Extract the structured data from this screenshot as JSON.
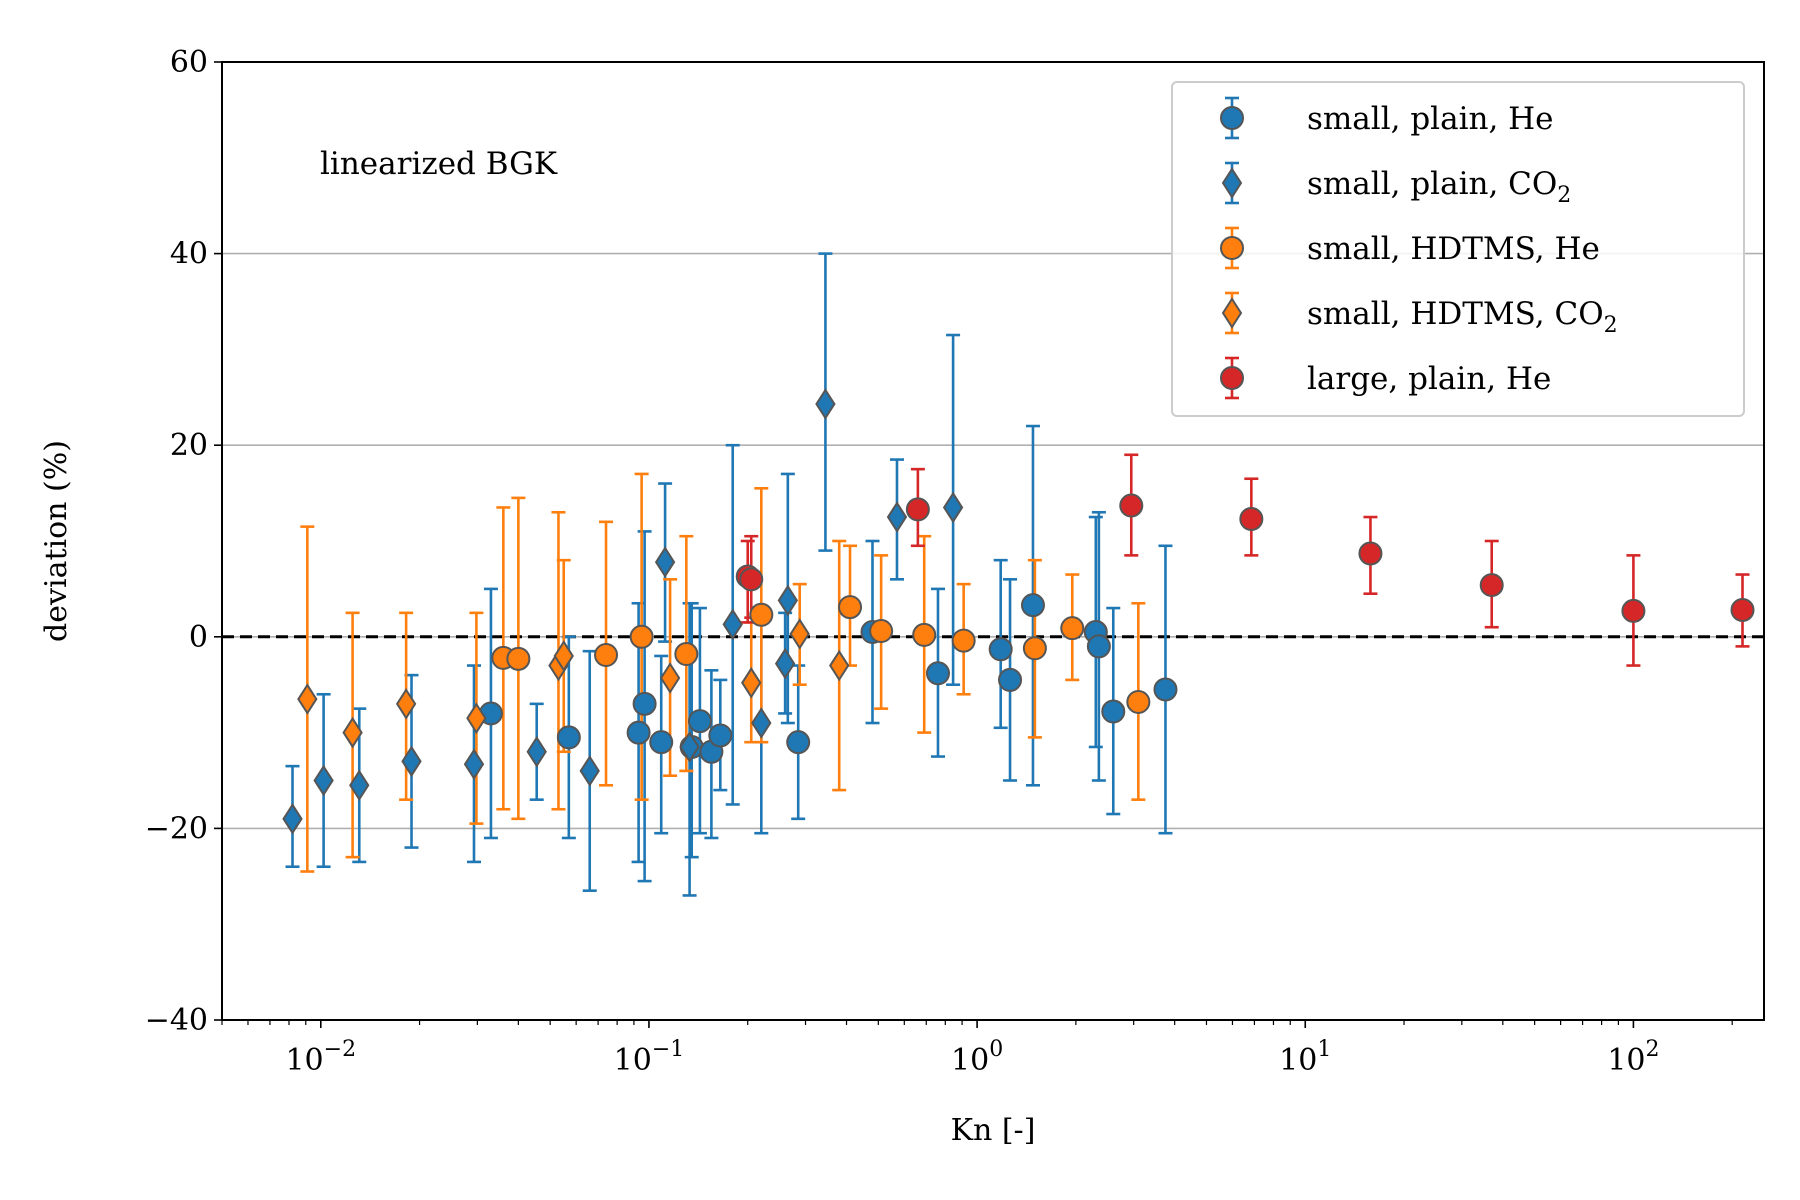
{
  "chart_data": {
    "type": "scatter",
    "title": "",
    "xlabel": "Kn [-]",
    "ylabel": "deviation (%)",
    "xscale": "log",
    "xlim": [
      0.005,
      250
    ],
    "ylim": [
      -40,
      60
    ],
    "yticks": [
      {
        "value": -40,
        "label": "−40"
      },
      {
        "value": -20,
        "label": "−20"
      },
      {
        "value": 0,
        "label": "0"
      },
      {
        "value": 20,
        "label": "20"
      },
      {
        "value": 40,
        "label": "40"
      },
      {
        "value": 60,
        "label": "60"
      }
    ],
    "xticks": [
      {
        "value": 0.01,
        "base": "10",
        "exp": "−2"
      },
      {
        "value": 0.1,
        "base": "10",
        "exp": "−1"
      },
      {
        "value": 1,
        "base": "10",
        "exp": "0"
      },
      {
        "value": 10,
        "base": "10",
        "exp": "1"
      },
      {
        "value": 100,
        "base": "10",
        "exp": "2"
      }
    ],
    "grid": "y-major",
    "reference_line": {
      "y": 0,
      "style": "dashed",
      "color": "#000000"
    },
    "annotation": "linearized BGK",
    "legend_position": "upper-right",
    "series": [
      {
        "name": "small, plain, He",
        "name_main": "small, plain, He",
        "name_sub": "",
        "marker": "circle",
        "color": "#1f77b4",
        "points": [
          {
            "x": 0.033,
            "y": -8.0,
            "lo": -21,
            "hi": 5
          },
          {
            "x": 0.057,
            "y": -10.5,
            "lo": -21,
            "hi": 0
          },
          {
            "x": 0.093,
            "y": -10.0,
            "lo": -23.5,
            "hi": 3.5
          },
          {
            "x": 0.097,
            "y": -7.0,
            "lo": -25.5,
            "hi": 11
          },
          {
            "x": 0.109,
            "y": -11.0,
            "lo": -20.5,
            "hi": -2
          },
          {
            "x": 0.135,
            "y": -11.5,
            "lo": -23,
            "hi": 3.5
          },
          {
            "x": 0.143,
            "y": -8.8,
            "lo": -20.5,
            "hi": 3
          },
          {
            "x": 0.155,
            "y": -12.0,
            "lo": -21,
            "hi": -3.5
          },
          {
            "x": 0.165,
            "y": -10.3,
            "lo": -16,
            "hi": -4.5
          },
          {
            "x": 0.285,
            "y": -11.0,
            "lo": -19,
            "hi": -3
          },
          {
            "x": 0.48,
            "y": 0.5,
            "lo": -9,
            "hi": 10
          },
          {
            "x": 0.76,
            "y": -3.8,
            "lo": -12.5,
            "hi": 5
          },
          {
            "x": 1.18,
            "y": -1.3,
            "lo": -9.5,
            "hi": 8
          },
          {
            "x": 1.26,
            "y": -4.5,
            "lo": -15,
            "hi": 6
          },
          {
            "x": 1.48,
            "y": 3.3,
            "lo": -15.5,
            "hi": 22
          },
          {
            "x": 2.3,
            "y": 0.5,
            "lo": -11.5,
            "hi": 12.5
          },
          {
            "x": 2.35,
            "y": -1.0,
            "lo": -15,
            "hi": 13
          },
          {
            "x": 2.6,
            "y": -7.8,
            "lo": -18.5,
            "hi": 3
          },
          {
            "x": 3.75,
            "y": -5.5,
            "lo": -20.5,
            "hi": 9.5
          }
        ]
      },
      {
        "name": "small, plain, CO2",
        "name_main": "small, plain, CO",
        "name_sub": "2",
        "marker": "diamond",
        "color": "#1f77b4",
        "points": [
          {
            "x": 0.0082,
            "y": -19.0,
            "lo": -24,
            "hi": -13.5
          },
          {
            "x": 0.0102,
            "y": -15.0,
            "lo": -24,
            "hi": -6
          },
          {
            "x": 0.0131,
            "y": -15.5,
            "lo": -23.5,
            "hi": -7.5
          },
          {
            "x": 0.0189,
            "y": -13.0,
            "lo": -22,
            "hi": -4
          },
          {
            "x": 0.0293,
            "y": -13.3,
            "lo": -23.5,
            "hi": -3
          },
          {
            "x": 0.0455,
            "y": -12.0,
            "lo": -17,
            "hi": -7
          },
          {
            "x": 0.066,
            "y": -14.0,
            "lo": -26.5,
            "hi": -1.5
          },
          {
            "x": 0.112,
            "y": 7.8,
            "lo": -0.5,
            "hi": 16
          },
          {
            "x": 0.133,
            "y": -11.5,
            "lo": -27,
            "hi": 3.5
          },
          {
            "x": 0.18,
            "y": 1.3,
            "lo": -17.5,
            "hi": 20
          },
          {
            "x": 0.22,
            "y": -9.0,
            "lo": -20.5,
            "hi": 2
          },
          {
            "x": 0.26,
            "y": -2.8,
            "lo": -8,
            "hi": 2.5
          },
          {
            "x": 0.265,
            "y": 3.8,
            "lo": -9,
            "hi": 17
          },
          {
            "x": 0.345,
            "y": 24.3,
            "lo": 9,
            "hi": 40
          },
          {
            "x": 0.57,
            "y": 12.5,
            "lo": 6,
            "hi": 18.5
          },
          {
            "x": 0.845,
            "y": 13.5,
            "lo": -5,
            "hi": 31.5
          }
        ]
      },
      {
        "name": "small, HDTMS, He",
        "name_main": "small, HDTMS, He",
        "name_sub": "",
        "marker": "circle",
        "color": "#ff7f0e",
        "points": [
          {
            "x": 0.036,
            "y": -2.2,
            "lo": -18,
            "hi": 13.5
          },
          {
            "x": 0.04,
            "y": -2.3,
            "lo": -19,
            "hi": 14.5
          },
          {
            "x": 0.074,
            "y": -1.9,
            "lo": -15.5,
            "hi": 12
          },
          {
            "x": 0.095,
            "y": 0.0,
            "lo": -17,
            "hi": 17
          },
          {
            "x": 0.13,
            "y": -1.8,
            "lo": -14,
            "hi": 10.5
          },
          {
            "x": 0.22,
            "y": 2.3,
            "lo": -11,
            "hi": 15.5
          },
          {
            "x": 0.41,
            "y": 3.1,
            "lo": -3,
            "hi": 9.5
          },
          {
            "x": 0.51,
            "y": 0.6,
            "lo": -7.5,
            "hi": 8.5
          },
          {
            "x": 0.69,
            "y": 0.2,
            "lo": -10,
            "hi": 10.5
          },
          {
            "x": 0.91,
            "y": -0.4,
            "lo": -6,
            "hi": 5.5
          },
          {
            "x": 1.5,
            "y": -1.2,
            "lo": -10.5,
            "hi": 8
          },
          {
            "x": 1.95,
            "y": 0.9,
            "lo": -4.5,
            "hi": 6.5
          },
          {
            "x": 3.1,
            "y": -6.8,
            "lo": -17,
            "hi": 3.5
          }
        ]
      },
      {
        "name": "small, HDTMS, CO2",
        "name_main": "small, HDTMS, CO",
        "name_sub": "2",
        "marker": "diamond",
        "color": "#ff7f0e",
        "points": [
          {
            "x": 0.0091,
            "y": -6.5,
            "lo": -24.5,
            "hi": 11.5
          },
          {
            "x": 0.0125,
            "y": -10.0,
            "lo": -23,
            "hi": 2.5
          },
          {
            "x": 0.0182,
            "y": -7.0,
            "lo": -17,
            "hi": 2.5
          },
          {
            "x": 0.0298,
            "y": -8.5,
            "lo": -19.5,
            "hi": 2.5
          },
          {
            "x": 0.053,
            "y": -3.0,
            "lo": -18,
            "hi": 13
          },
          {
            "x": 0.055,
            "y": -2.0,
            "lo": -12,
            "hi": 8
          },
          {
            "x": 0.116,
            "y": -4.3,
            "lo": -14.5,
            "hi": 6
          },
          {
            "x": 0.205,
            "y": -4.8,
            "lo": -11,
            "hi": 1.5
          },
          {
            "x": 0.288,
            "y": 0.3,
            "lo": -5,
            "hi": 5.5
          },
          {
            "x": 0.38,
            "y": -3.0,
            "lo": -16,
            "hi": 10
          }
        ]
      },
      {
        "name": "large, plain, He",
        "name_main": "large, plain, He",
        "name_sub": "",
        "marker": "circle",
        "color": "#d62728",
        "points": [
          {
            "x": 0.2,
            "y": 6.3,
            "lo": 1.5,
            "hi": 10
          },
          {
            "x": 0.205,
            "y": 6.0,
            "lo": 2,
            "hi": 10.5
          },
          {
            "x": 0.66,
            "y": 13.3,
            "lo": 9.5,
            "hi": 17.5
          },
          {
            "x": 2.95,
            "y": 13.7,
            "lo": 8.5,
            "hi": 19
          },
          {
            "x": 6.85,
            "y": 12.3,
            "lo": 8.5,
            "hi": 16.5
          },
          {
            "x": 15.8,
            "y": 8.7,
            "lo": 4.5,
            "hi": 12.5
          },
          {
            "x": 37.0,
            "y": 5.4,
            "lo": 1,
            "hi": 10
          },
          {
            "x": 100.0,
            "y": 2.7,
            "lo": -3,
            "hi": 8.5
          },
          {
            "x": 215.0,
            "y": 2.8,
            "lo": -1,
            "hi": 6.5
          }
        ]
      }
    ]
  }
}
